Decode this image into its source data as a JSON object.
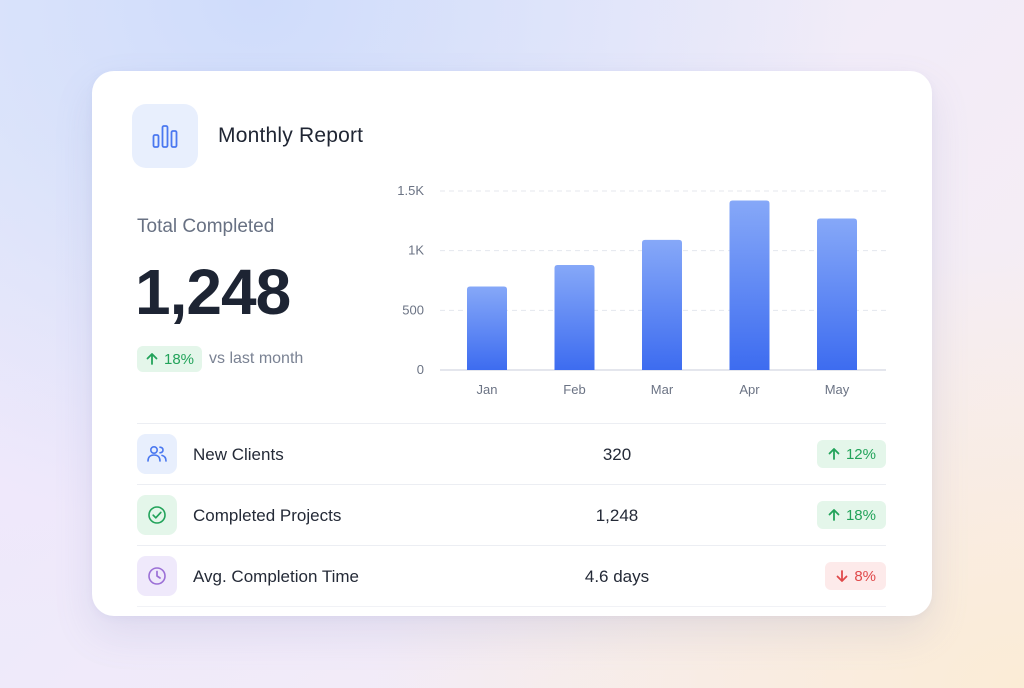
{
  "header": {
    "title": "Monthly Report",
    "logo_icon": "bar-chart-icon"
  },
  "summary": {
    "label": "Total Completed",
    "value": "1,248",
    "trend": {
      "direction": "up",
      "text": "18%",
      "caption": "vs last month"
    }
  },
  "chart_data": {
    "type": "bar",
    "categories": [
      "Jan",
      "Feb",
      "Mar",
      "Apr",
      "May"
    ],
    "values": [
      700,
      880,
      1090,
      1420,
      1270
    ],
    "ylim": [
      0,
      1500
    ],
    "yticks": [
      0,
      500,
      1000,
      1500
    ],
    "ytick_labels": [
      "0",
      "500",
      "1K",
      "1.5K"
    ],
    "grid": true,
    "bar_color_top": "#86a8f8",
    "bar_color_bottom": "#3d6cf0"
  },
  "metrics": [
    {
      "icon": "users-icon",
      "label": "New Clients",
      "value": "320",
      "change": "12%",
      "direction": "up"
    },
    {
      "icon": "check-circle-icon",
      "label": "Completed Projects",
      "value": "1,248",
      "change": "18%",
      "direction": "up"
    },
    {
      "icon": "clock-icon",
      "label": "Avg. Completion Time",
      "value": "4.6 days",
      "change": "8%",
      "direction": "down"
    }
  ],
  "colors": {
    "accent": "#4a78f0",
    "positive": "#22a35a",
    "negative": "#e0494a",
    "purple": "#9b6fd6"
  }
}
